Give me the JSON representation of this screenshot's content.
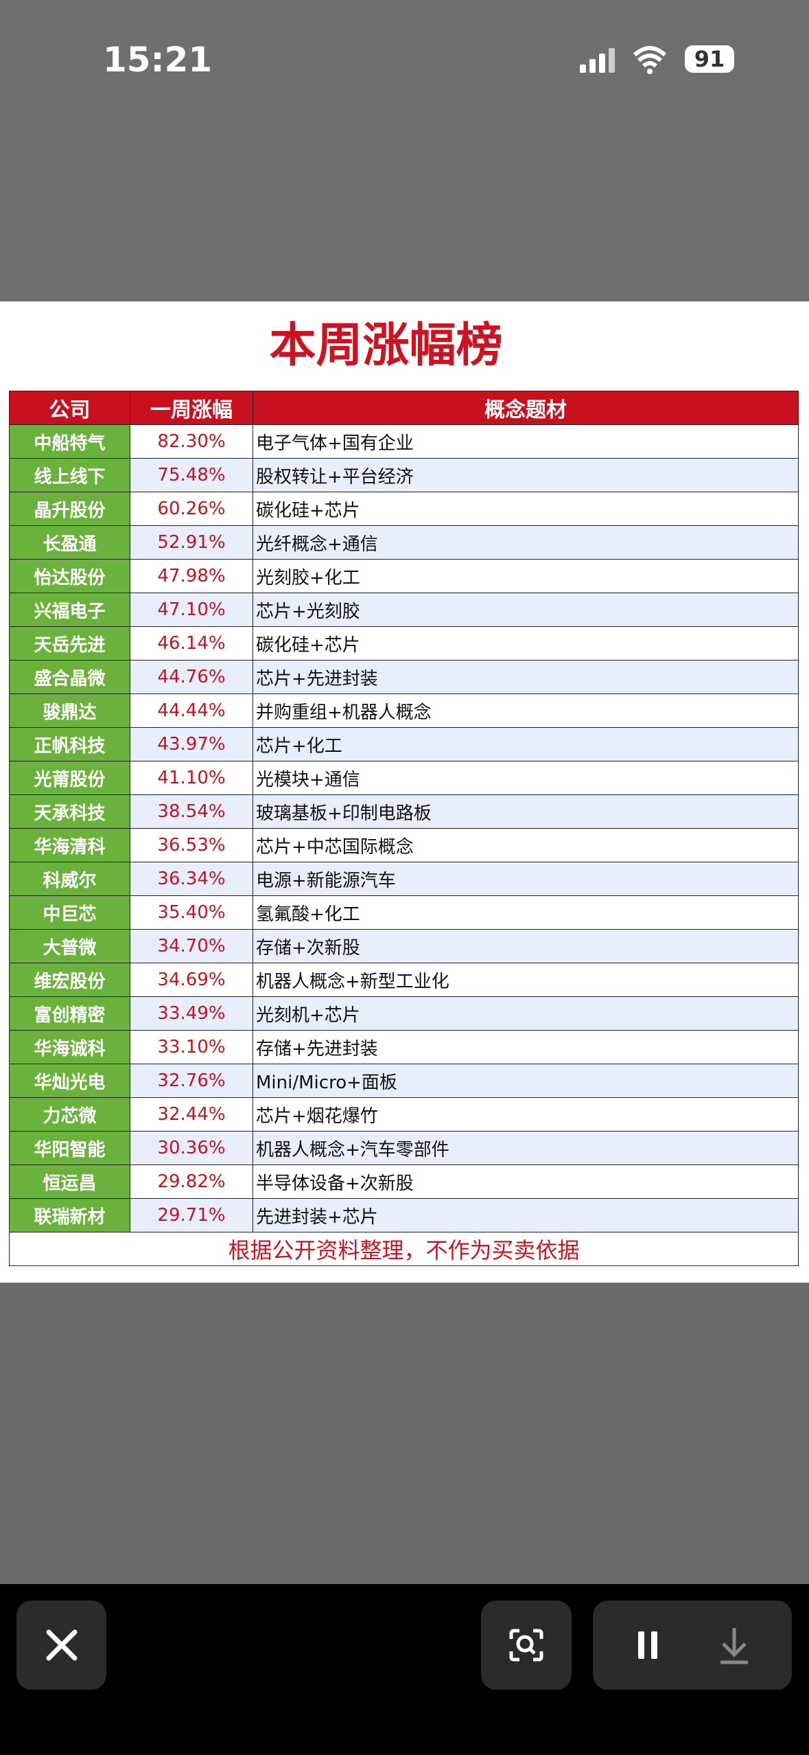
{
  "status_bar": {
    "time": "15:21",
    "battery": "91"
  },
  "table": {
    "title": "本周涨幅榜",
    "headers": [
      "公司",
      "一周涨幅",
      "概念题材"
    ],
    "rows": [
      [
        "中船特气",
        "82.30%",
        "电子气体+国有企业"
      ],
      [
        "线上线下",
        "75.48%",
        "股权转让+平台经济"
      ],
      [
        "晶升股份",
        "60.26%",
        "碳化硅+芯片"
      ],
      [
        "长盈通",
        "52.91%",
        "光纤概念+通信"
      ],
      [
        "怡达股份",
        "47.98%",
        "光刻胶+化工"
      ],
      [
        "兴福电子",
        "47.10%",
        "芯片+光刻胶"
      ],
      [
        "天岳先进",
        "46.14%",
        "碳化硅+芯片"
      ],
      [
        "盛合晶微",
        "44.76%",
        "芯片+先进封装"
      ],
      [
        "骏鼎达",
        "44.44%",
        "并购重组+机器人概念"
      ],
      [
        "正帆科技",
        "43.97%",
        "芯片+化工"
      ],
      [
        "光莆股份",
        "41.10%",
        "光模块+通信"
      ],
      [
        "天承科技",
        "38.54%",
        "玻璃基板+印制电路板"
      ],
      [
        "华海清科",
        "36.53%",
        "芯片+中芯国际概念"
      ],
      [
        "科威尔",
        "36.34%",
        "电源+新能源汽车"
      ],
      [
        "中巨芯",
        "35.40%",
        "氢氟酸+化工"
      ],
      [
        "大普微",
        "34.70%",
        "存储+次新股"
      ],
      [
        "维宏股份",
        "34.69%",
        "机器人概念+新型工业化"
      ],
      [
        "富创精密",
        "33.49%",
        "光刻机+芯片"
      ],
      [
        "华海诚科",
        "33.10%",
        "存储+先进封装"
      ],
      [
        "华灿光电",
        "32.76%",
        "Mini/Micro+面板"
      ],
      [
        "力芯微",
        "32.44%",
        "芯片+烟花爆竹"
      ],
      [
        "华阳智能",
        "30.36%",
        "机器人概念+汽车零部件"
      ],
      [
        "恒运昌",
        "29.82%",
        "半导体设备+次新股"
      ],
      [
        "联瑞新材",
        "29.71%",
        "先进封装+芯片"
      ]
    ],
    "footer": "根据公开资料整理，不作为买卖依据"
  }
}
